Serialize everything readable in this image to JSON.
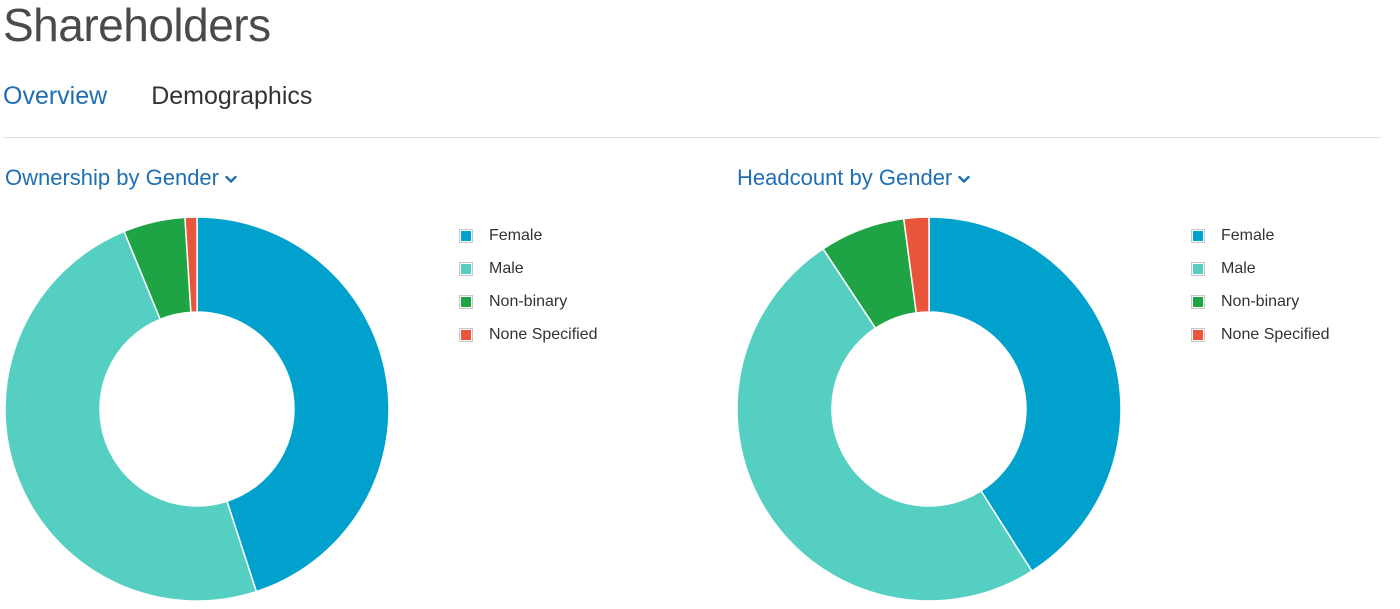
{
  "page": {
    "title": "Shareholders"
  },
  "tabs": [
    {
      "label": "Overview",
      "active": true
    },
    {
      "label": "Demographics",
      "active": false
    }
  ],
  "chart_data": [
    {
      "type": "pie",
      "title": "Ownership by Gender",
      "donut": true,
      "legend_position": "right",
      "categories": [
        "Female",
        "Male",
        "Non-binary",
        "None Specified"
      ],
      "values": [
        45.0,
        48.8,
        5.2,
        1.0
      ],
      "colors": [
        "#00a2cd",
        "#55cfc1",
        "#1ea345",
        "#e8553a"
      ]
    },
    {
      "type": "pie",
      "title": "Headcount by Gender",
      "donut": true,
      "legend_position": "right",
      "categories": [
        "Female",
        "Male",
        "Non-binary",
        "None Specified"
      ],
      "values": [
        41.0,
        49.7,
        7.2,
        2.1
      ],
      "colors": [
        "#00a2cd",
        "#55cfc1",
        "#1ea345",
        "#e8553a"
      ]
    }
  ]
}
